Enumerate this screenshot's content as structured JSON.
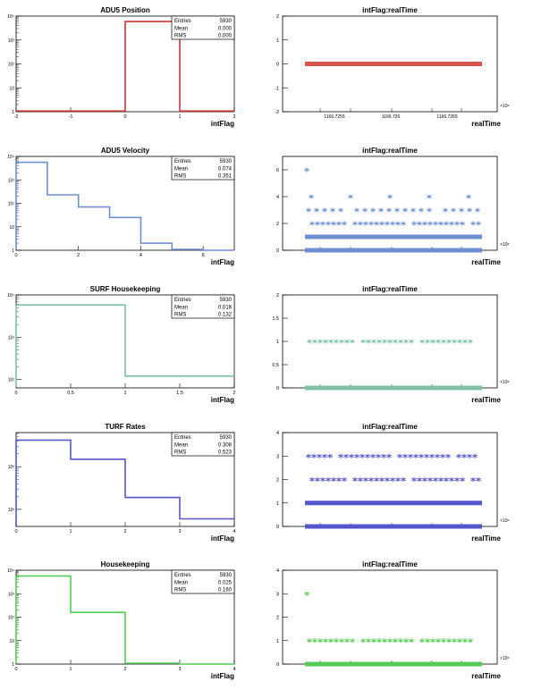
{
  "chart_data": [
    {
      "type": "bar",
      "title": "ADU5 Position",
      "xlabel": "intFlag",
      "ylabel": "",
      "color": "#cc3333",
      "xlim": [
        -2,
        2
      ],
      "log_y": true,
      "y_exponent_range": [
        0,
        4
      ],
      "x_ticks": [
        "-2",
        "-1",
        "0",
        "1",
        "2"
      ],
      "y_tick_labels": [
        "1",
        "10",
        "10²",
        "10³",
        "10⁴"
      ],
      "bins": [
        {
          "x0": 0,
          "x1": 1,
          "value": 5930
        }
      ],
      "stats": {
        "Entries": "5930",
        "Mean": "0.000",
        "RMS": "0.000"
      }
    },
    {
      "type": "scatter",
      "title": "intFlag:realTime",
      "xlabel": "realTime",
      "ylabel": "",
      "color": "#d9534f",
      "ylim": [
        -2,
        2
      ],
      "y_ticks": [
        "-2",
        "-1",
        "0",
        "1",
        "2"
      ],
      "x_tick_labels": [
        "1166.7255",
        "1166.726",
        "1166.7265"
      ],
      "x_multiplier": "×10⁶",
      "levels": [
        {
          "y": 0,
          "kind": "dense"
        }
      ]
    },
    {
      "type": "bar",
      "title": "ADU5 Velocity",
      "xlabel": "intFlag",
      "ylabel": "",
      "color": "#6f8fcf",
      "xlim": [
        0,
        7
      ],
      "log_y": true,
      "y_exponent_range": [
        0,
        4
      ],
      "x_ticks": [
        "0",
        "2",
        "4",
        "6"
      ],
      "y_tick_labels": [
        "1",
        "10",
        "10²",
        "10³",
        "10⁴"
      ],
      "bins": [
        {
          "x0": 0,
          "x1": 1,
          "value": 5600
        },
        {
          "x0": 1,
          "x1": 2,
          "value": 230
        },
        {
          "x0": 2,
          "x1": 3,
          "value": 70
        },
        {
          "x0": 3,
          "x1": 4,
          "value": 25
        },
        {
          "x0": 4,
          "x1": 5,
          "value": 2
        },
        {
          "x0": 5,
          "x1": 6,
          "value": 0
        },
        {
          "x0": 6,
          "x1": 7,
          "value": 1
        }
      ],
      "stats": {
        "Entries": "5930",
        "Mean": "0.074",
        "RMS": "0.351"
      }
    },
    {
      "type": "scatter",
      "title": "intFlag:realTime",
      "xlabel": "realTime",
      "ylabel": "",
      "color": "#6f8fcf",
      "ylim": [
        0,
        7
      ],
      "y_ticks": [
        "0",
        "2",
        "4",
        "6"
      ],
      "x_tick_labels": [],
      "x_multiplier": "×10⁶",
      "levels": [
        {
          "y": 0,
          "kind": "dense"
        },
        {
          "y": 1,
          "kind": "dense"
        },
        {
          "y": 2,
          "kind": "medium"
        },
        {
          "y": 3,
          "kind": "sparse"
        },
        {
          "y": 4,
          "kind": "few"
        },
        {
          "y": 6,
          "kind": "single"
        }
      ]
    },
    {
      "type": "bar",
      "title": "SURF Housekeeping",
      "xlabel": "intFlag",
      "ylabel": "",
      "color": "#7fc0a4",
      "xlim": [
        0,
        2
      ],
      "log_y": true,
      "y_exponent_range": [
        1.8,
        4
      ],
      "x_ticks": [
        "0",
        "0.5",
        "1",
        "1.5",
        "2"
      ],
      "y_tick_labels": [
        "10²",
        "10³",
        "10⁴"
      ],
      "bins": [
        {
          "x0": 0,
          "x1": 1,
          "value": 5800
        },
        {
          "x0": 1,
          "x1": 2,
          "value": 120
        }
      ],
      "stats": {
        "Entries": "5930",
        "Mean": "0.018",
        "RMS": "0.132"
      }
    },
    {
      "type": "scatter",
      "title": "intFlag:realTime",
      "xlabel": "realTime",
      "ylabel": "",
      "color": "#7fc0a4",
      "ylim": [
        0,
        2
      ],
      "y_ticks": [
        "0",
        "0.5",
        "1",
        "1.5",
        "2"
      ],
      "x_tick_labels": [],
      "x_multiplier": "×10⁶",
      "levels": [
        {
          "y": 0,
          "kind": "dense"
        },
        {
          "y": 1,
          "kind": "medium"
        }
      ]
    },
    {
      "type": "bar",
      "title": "TURF Rates",
      "xlabel": "intFlag",
      "ylabel": "",
      "color": "#5555cc",
      "xlim": [
        0,
        4
      ],
      "log_y": true,
      "y_exponent_range": [
        1.6,
        3.8
      ],
      "x_ticks": [
        "0",
        "1",
        "2",
        "3",
        "4"
      ],
      "y_tick_labels": [
        "10²",
        "10³"
      ],
      "bins": [
        {
          "x0": 0,
          "x1": 1,
          "value": 4200
        },
        {
          "x0": 1,
          "x1": 2,
          "value": 1500
        },
        {
          "x0": 2,
          "x1": 3,
          "value": 190
        },
        {
          "x0": 3,
          "x1": 4,
          "value": 60
        }
      ],
      "stats": {
        "Entries": "5930",
        "Mean": "0.308",
        "RMS": "0.523"
      }
    },
    {
      "type": "scatter",
      "title": "intFlag:realTime",
      "xlabel": "realTime",
      "ylabel": "",
      "color": "#5555cc",
      "ylim": [
        0,
        4
      ],
      "y_ticks": [
        "0",
        "1",
        "2",
        "3",
        "4"
      ],
      "x_tick_labels": [],
      "x_multiplier": "×10⁶",
      "levels": [
        {
          "y": 0,
          "kind": "dense"
        },
        {
          "y": 1,
          "kind": "dense"
        },
        {
          "y": 2,
          "kind": "medium"
        },
        {
          "y": 3,
          "kind": "medium"
        }
      ]
    },
    {
      "type": "bar",
      "title": "Housekeeping",
      "xlabel": "intFlag",
      "ylabel": "",
      "color": "#55cc55",
      "xlim": [
        0,
        4
      ],
      "log_y": true,
      "y_exponent_range": [
        0,
        4
      ],
      "x_ticks": [
        "0",
        "1",
        "2",
        "3",
        "4"
      ],
      "y_tick_labels": [
        "1",
        "10",
        "10²",
        "10³",
        "10⁴"
      ],
      "bins": [
        {
          "x0": 0,
          "x1": 1,
          "value": 5700
        },
        {
          "x0": 1,
          "x1": 2,
          "value": 160
        },
        {
          "x0": 2,
          "x1": 3,
          "value": 0
        },
        {
          "x0": 3,
          "x1": 4,
          "value": 1
        }
      ],
      "stats": {
        "Entries": "5930",
        "Mean": "0.025",
        "RMS": "0.160"
      }
    },
    {
      "type": "scatter",
      "title": "intFlag:realTime",
      "xlabel": "realTime",
      "ylabel": "",
      "color": "#55cc55",
      "ylim": [
        0,
        4
      ],
      "y_ticks": [
        "0",
        "1",
        "2",
        "3",
        "4"
      ],
      "x_tick_labels": [],
      "x_multiplier": "×10⁶",
      "levels": [
        {
          "y": 0,
          "kind": "dense"
        },
        {
          "y": 1,
          "kind": "medium"
        },
        {
          "y": 3,
          "kind": "single"
        }
      ]
    }
  ]
}
